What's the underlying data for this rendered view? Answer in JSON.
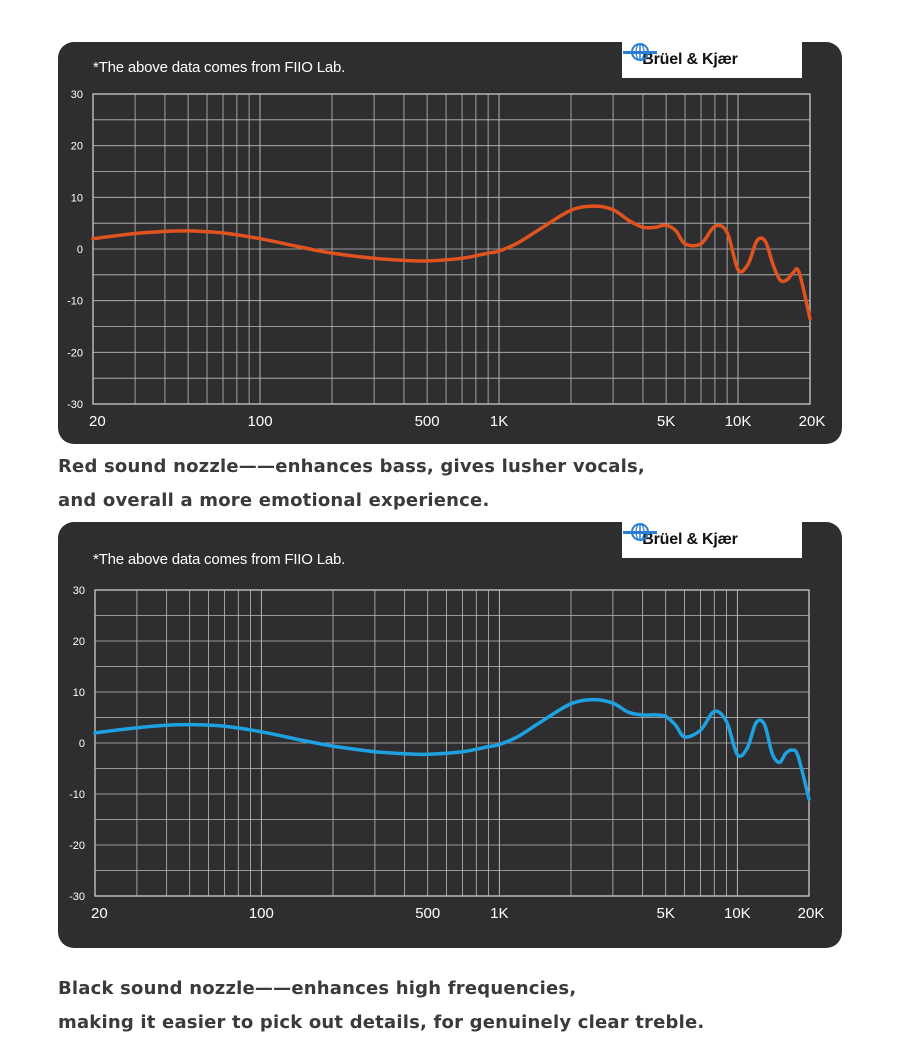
{
  "charts": [
    {
      "note": "*The above data comes from FIIO Lab.",
      "brand": "Brüel & Kjær",
      "caption_lines": [
        "Red sound nozzle——enhances bass, gives lusher vocals,",
        "and overall a more emotional experience."
      ]
    },
    {
      "note": "*The above data comes from FIIO Lab.",
      "brand": "Brüel & Kjær",
      "caption_lines": [
        "Black sound nozzle——enhances high frequencies,",
        "making it easier to pick out details, for genuinely clear treble."
      ]
    }
  ],
  "chart_data": [
    {
      "type": "line",
      "xscale": "log",
      "xlim": [
        20,
        20000
      ],
      "ylim": [
        -30,
        30
      ],
      "x_ticks": [
        20,
        100,
        500,
        1000,
        5000,
        10000,
        20000
      ],
      "x_tick_labels": [
        "20",
        "100",
        "500",
        "1K",
        "5K",
        "10K",
        "20K"
      ],
      "y_ticks": [
        30,
        20,
        10,
        0,
        -10,
        -20,
        -30
      ],
      "y_tick_labels": [
        "30",
        "20",
        "10",
        "0",
        "-10",
        "-20",
        "-30"
      ],
      "grid": true,
      "color": "#e0531f",
      "series": [
        {
          "x": [
            20,
            30,
            40,
            50,
            70,
            100,
            150,
            200,
            300,
            400,
            500,
            700,
            900,
            1000,
            1200,
            1500,
            2000,
            2500,
            3000,
            3500,
            4000,
            4500,
            5000,
            5500,
            6000,
            7000,
            8000,
            9000,
            10000,
            11000,
            12000,
            13000,
            14000,
            15000,
            16000,
            17000,
            18000,
            20000
          ],
          "y": [
            2,
            3,
            3.4,
            3.5,
            3.1,
            2,
            0.3,
            -0.8,
            -1.8,
            -2.2,
            -2.3,
            -1.8,
            -0.8,
            -0.4,
            1.2,
            4,
            7.5,
            8.3,
            7.6,
            5.5,
            4.2,
            4.2,
            4.6,
            3.5,
            1,
            1,
            4.4,
            3.2,
            -4,
            -3,
            1.6,
            1.5,
            -3,
            -6,
            -6,
            -4.6,
            -4.5,
            -13.5
          ]
        }
      ]
    },
    {
      "type": "line",
      "xscale": "log",
      "xlim": [
        20,
        20000
      ],
      "ylim": [
        -30,
        30
      ],
      "x_ticks": [
        20,
        100,
        500,
        1000,
        5000,
        10000,
        20000
      ],
      "x_tick_labels": [
        "20",
        "100",
        "500",
        "1K",
        "5K",
        "10K",
        "20K"
      ],
      "y_ticks": [
        30,
        20,
        10,
        0,
        -10,
        -20,
        -30
      ],
      "y_tick_labels": [
        "30",
        "20",
        "10",
        "0",
        "-10",
        "-20",
        "-30"
      ],
      "grid": true,
      "color": "#1ea1e0",
      "series": [
        {
          "x": [
            20,
            30,
            40,
            50,
            70,
            100,
            150,
            200,
            300,
            400,
            500,
            700,
            900,
            1000,
            1200,
            1500,
            2000,
            2500,
            3000,
            3500,
            4000,
            4500,
            5000,
            5500,
            6000,
            7000,
            8000,
            9000,
            10000,
            11000,
            12000,
            13000,
            14000,
            15000,
            16000,
            17000,
            18000,
            20000
          ],
          "y": [
            2,
            3,
            3.5,
            3.6,
            3.3,
            2.2,
            0.5,
            -0.6,
            -1.7,
            -2.1,
            -2.2,
            -1.7,
            -0.7,
            -0.3,
            1.3,
            4.2,
            7.7,
            8.5,
            7.8,
            6,
            5.5,
            5.5,
            5.2,
            3.5,
            1.2,
            2.5,
            6.2,
            4.2,
            -2.3,
            -1,
            4,
            3.6,
            -2,
            -3.8,
            -2,
            -1.4,
            -2.6,
            -11
          ]
        }
      ]
    }
  ]
}
